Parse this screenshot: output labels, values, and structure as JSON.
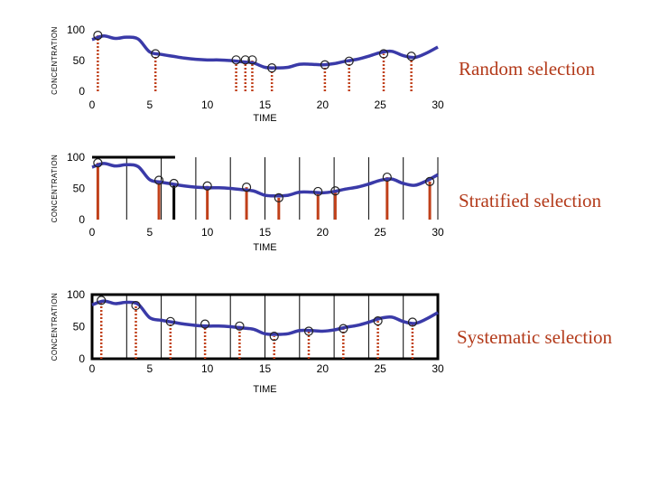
{
  "chart_data": [
    {
      "type": "line",
      "title": "Random selection",
      "xlabel": "TIME",
      "ylabel": "CONCENTRATION",
      "xlim": [
        0,
        30
      ],
      "ylim": [
        0,
        100
      ],
      "x_ticks": [
        0,
        5,
        10,
        15,
        20,
        25,
        30
      ],
      "y_ticks": [
        0,
        50,
        100
      ],
      "frame": false,
      "series": [
        {
          "x": [
            0,
            1,
            2,
            3,
            4,
            5,
            6,
            7,
            8,
            9,
            10,
            11,
            12,
            13,
            14,
            15,
            16,
            17,
            18,
            19,
            20,
            21,
            22,
            23,
            24,
            25,
            26,
            27,
            28,
            29,
            30
          ],
          "values": [
            84,
            90,
            86,
            88,
            85,
            64,
            60,
            57,
            54,
            52,
            51,
            51,
            50,
            48,
            46,
            39,
            38,
            39,
            44,
            44,
            43,
            45,
            49,
            52,
            57,
            63,
            65,
            58,
            55,
            62,
            72
          ]
        }
      ],
      "samples": [
        {
          "x": 0.5,
          "y": 91
        },
        {
          "x": 5.5,
          "y": 61
        },
        {
          "x": 12.5,
          "y": 51
        },
        {
          "x": 13.3,
          "y": 51
        },
        {
          "x": 13.9,
          "y": 51
        },
        {
          "x": 15.6,
          "y": 38
        },
        {
          "x": 20.2,
          "y": 43
        },
        {
          "x": 22.3,
          "y": 49
        },
        {
          "x": 25.3,
          "y": 61
        },
        {
          "x": 27.7,
          "y": 57
        }
      ],
      "dividers": []
    },
    {
      "type": "line",
      "title": "Stratified selection",
      "xlabel": "TIME",
      "ylabel": "CONCENTRATION",
      "xlim": [
        0,
        30
      ],
      "ylim": [
        0,
        100
      ],
      "x_ticks": [
        0,
        5,
        10,
        15,
        20,
        25,
        30
      ],
      "y_ticks": [
        0,
        50,
        100
      ],
      "frame": "top",
      "series": [
        {
          "x": [
            0,
            1,
            2,
            3,
            4,
            5,
            6,
            7,
            8,
            9,
            10,
            11,
            12,
            13,
            14,
            15,
            16,
            17,
            18,
            19,
            20,
            21,
            22,
            23,
            24,
            25,
            26,
            27,
            28,
            29,
            30
          ],
          "values": [
            84,
            90,
            86,
            88,
            85,
            64,
            60,
            57,
            54,
            52,
            51,
            51,
            50,
            48,
            46,
            39,
            38,
            39,
            44,
            44,
            43,
            45,
            49,
            52,
            57,
            63,
            65,
            58,
            55,
            62,
            72
          ]
        }
      ],
      "samples": [
        {
          "x": 0.5,
          "y": 91
        },
        {
          "x": 5.8,
          "y": 63
        },
        {
          "x": 7.1,
          "y": 58
        },
        {
          "x": 10.0,
          "y": 54
        },
        {
          "x": 13.4,
          "y": 52
        },
        {
          "x": 16.2,
          "y": 35
        },
        {
          "x": 19.6,
          "y": 45
        },
        {
          "x": 21.1,
          "y": 46
        },
        {
          "x": 25.6,
          "y": 68
        },
        {
          "x": 29.3,
          "y": 61
        }
      ],
      "dividers": [
        3,
        6,
        9,
        12,
        15,
        18,
        21,
        24,
        27,
        30
      ]
    },
    {
      "type": "line",
      "title": "Systematic selection",
      "xlabel": "TIME",
      "ylabel": "CONCENTRATION",
      "xlim": [
        0,
        30
      ],
      "ylim": [
        0,
        100
      ],
      "x_ticks": [
        0,
        5,
        10,
        15,
        20,
        25,
        30
      ],
      "y_ticks": [
        0,
        50,
        100
      ],
      "frame": "box",
      "series": [
        {
          "x": [
            0,
            1,
            2,
            3,
            4,
            5,
            6,
            7,
            8,
            9,
            10,
            11,
            12,
            13,
            14,
            15,
            16,
            17,
            18,
            19,
            20,
            21,
            22,
            23,
            24,
            25,
            26,
            27,
            28,
            29,
            30
          ],
          "values": [
            84,
            90,
            86,
            88,
            85,
            64,
            60,
            57,
            54,
            52,
            51,
            51,
            50,
            48,
            46,
            39,
            38,
            39,
            44,
            44,
            43,
            45,
            49,
            52,
            57,
            63,
            65,
            58,
            55,
            62,
            72
          ]
        }
      ],
      "samples": [
        {
          "x": 0.8,
          "y": 91
        },
        {
          "x": 3.8,
          "y": 83
        },
        {
          "x": 6.8,
          "y": 58
        },
        {
          "x": 9.8,
          "y": 54
        },
        {
          "x": 12.8,
          "y": 51
        },
        {
          "x": 15.8,
          "y": 35
        },
        {
          "x": 18.8,
          "y": 43
        },
        {
          "x": 21.8,
          "y": 47
        },
        {
          "x": 24.8,
          "y": 59
        },
        {
          "x": 27.8,
          "y": 57
        }
      ],
      "dividers": [
        3,
        6,
        9,
        12,
        15,
        18,
        21,
        24,
        27,
        30
      ]
    }
  ]
}
